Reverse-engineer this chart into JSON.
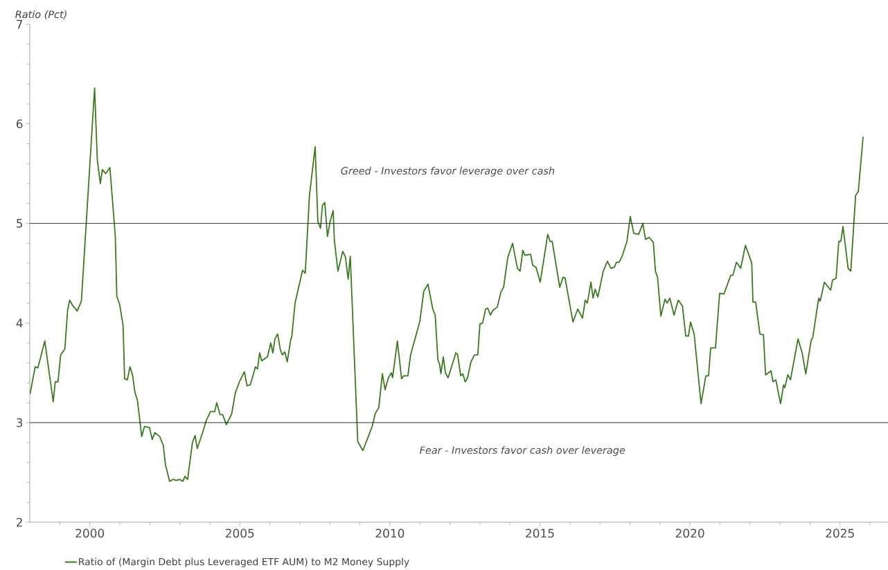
{
  "chart_data": {
    "type": "line",
    "ylabel": "Ratio (Pct)",
    "xlim": [
      1998,
      2026.6
    ],
    "ylim": [
      2,
      7
    ],
    "xticks": [
      {
        "value": 1999,
        "label": null
      },
      2000,
      {
        "value": 2001,
        "label": null
      },
      {
        "value": 2002,
        "label": null
      },
      {
        "value": 2003,
        "label": null
      },
      {
        "value": 2004,
        "label": null
      },
      2005,
      {
        "value": 2006,
        "label": null
      },
      {
        "value": 2007,
        "label": null
      },
      {
        "value": 2008,
        "label": null
      },
      {
        "value": 2009,
        "label": null
      },
      2010,
      {
        "value": 2011,
        "label": null
      },
      {
        "value": 2012,
        "label": null
      },
      {
        "value": 2013,
        "label": null
      },
      {
        "value": 2014,
        "label": null
      },
      2015,
      {
        "value": 2016,
        "label": null
      },
      {
        "value": 2017,
        "label": null
      },
      {
        "value": 2018,
        "label": null
      },
      {
        "value": 2019,
        "label": null
      },
      2020,
      {
        "value": 2021,
        "label": null
      },
      {
        "value": 2022,
        "label": null
      },
      {
        "value": 2023,
        "label": null
      },
      {
        "value": 2024,
        "label": null
      },
      2025,
      {
        "value": 2026,
        "label": null
      }
    ],
    "yticks": [
      2,
      {
        "value": 2.2,
        "label": null
      },
      {
        "value": 2.4,
        "label": null
      },
      {
        "value": 2.6,
        "label": null
      },
      {
        "value": 2.8,
        "label": null
      },
      3,
      {
        "value": 3.2,
        "label": null
      },
      {
        "value": 3.4,
        "label": null
      },
      {
        "value": 3.6,
        "label": null
      },
      {
        "value": 3.8,
        "label": null
      },
      4,
      {
        "value": 4.2,
        "label": null
      },
      {
        "value": 4.4,
        "label": null
      },
      {
        "value": 4.6,
        "label": null
      },
      {
        "value": 4.8,
        "label": null
      },
      5,
      {
        "value": 5.2,
        "label": null
      },
      {
        "value": 5.4,
        "label": null
      },
      {
        "value": 5.6,
        "label": null
      },
      {
        "value": 5.8,
        "label": null
      },
      6,
      {
        "value": 6.2,
        "label": null
      },
      {
        "value": 6.4,
        "label": null
      },
      {
        "value": 6.6,
        "label": null
      },
      {
        "value": 6.8,
        "label": null
      },
      7
    ],
    "legend": "bottom",
    "ref_lines": [
      {
        "axis": "y",
        "value": 5,
        "color": "#000000"
      },
      {
        "axis": "y",
        "value": 3,
        "color": "#000000"
      }
    ],
    "annotations": [
      "Greed - Investors favor leverage over cash",
      "Fear - Investors favor cash over leverage"
    ],
    "series": [
      {
        "name": "Ratio of (Margin Debt plus Leveraged ETF AUM) to M2 Money Supply",
        "color": "#3a7a1e",
        "x": [
          1998.01,
          1998.18,
          1998.27,
          1998.5,
          1998.78,
          1998.85,
          1998.94,
          1999.03,
          1999.17,
          1999.26,
          1999.33,
          1999.42,
          1999.58,
          1999.72,
          1999.93,
          2000.16,
          2000.25,
          2000.35,
          2000.42,
          2000.53,
          2000.67,
          2000.85,
          2000.9,
          2001.0,
          2001.11,
          2001.16,
          2001.25,
          2001.34,
          2001.43,
          2001.5,
          2001.59,
          2001.73,
          2001.82,
          2001.99,
          2002.08,
          2002.17,
          2002.33,
          2002.45,
          2002.52,
          2002.66,
          2002.77,
          2002.89,
          2003.0,
          2003.1,
          2003.17,
          2003.26,
          2003.42,
          2003.51,
          2003.58,
          2003.76,
          2003.88,
          2004.02,
          2004.16,
          2004.23,
          2004.34,
          2004.43,
          2004.55,
          2004.73,
          2004.85,
          2005.0,
          2005.15,
          2005.24,
          2005.35,
          2005.52,
          2005.59,
          2005.66,
          2005.73,
          2005.92,
          2006.03,
          2006.1,
          2006.17,
          2006.26,
          2006.35,
          2006.42,
          2006.5,
          2006.58,
          2006.7,
          2006.73,
          2006.84,
          2006.93,
          2007.09,
          2007.18,
          2007.32,
          2007.51,
          2007.6,
          2007.69,
          2007.75,
          2007.83,
          2007.92,
          2008.01,
          2008.11,
          2008.15,
          2008.27,
          2008.43,
          2008.52,
          2008.61,
          2008.68,
          2008.93,
          2009.1,
          2009.28,
          2009.42,
          2009.51,
          2009.63,
          2009.75,
          2009.84,
          2009.95,
          2010.05,
          2010.09,
          2010.25,
          2010.39,
          2010.46,
          2010.6,
          2010.69,
          2010.92,
          2011.0,
          2011.13,
          2011.27,
          2011.43,
          2011.51,
          2011.6,
          2011.66,
          2011.7,
          2011.78,
          2011.85,
          2011.94,
          2012.2,
          2012.26,
          2012.36,
          2012.43,
          2012.51,
          2012.59,
          2012.7,
          2012.82,
          2012.93,
          2013.0,
          2013.09,
          2013.19,
          2013.26,
          2013.35,
          2013.44,
          2013.58,
          2013.7,
          2013.79,
          2013.93,
          2014.09,
          2014.25,
          2014.34,
          2014.43,
          2014.5,
          2014.69,
          2014.76,
          2014.87,
          2015.01,
          2015.26,
          2015.34,
          2015.41,
          2015.66,
          2015.77,
          2015.84,
          2016.1,
          2016.26,
          2016.42,
          2016.51,
          2016.58,
          2016.7,
          2016.77,
          2016.84,
          2016.93,
          2017.11,
          2017.25,
          2017.37,
          2017.48,
          2017.55,
          2017.64,
          2017.74,
          2017.9,
          2018.01,
          2018.13,
          2018.29,
          2018.43,
          2018.52,
          2018.64,
          2018.78,
          2018.85,
          2018.92,
          2019.03,
          2019.17,
          2019.24,
          2019.33,
          2019.47,
          2019.61,
          2019.75,
          2019.86,
          2019.95,
          2020.02,
          2020.14,
          2020.37,
          2020.53,
          2020.62,
          2020.69,
          2020.85,
          2020.99,
          2021.13,
          2021.36,
          2021.43,
          2021.55,
          2021.69,
          2021.85,
          2022.06,
          2022.1,
          2022.19,
          2022.33,
          2022.45,
          2022.52,
          2022.7,
          2022.77,
          2022.86,
          2023.02,
          2023.12,
          2023.16,
          2023.26,
          2023.35,
          2023.6,
          2023.74,
          2023.86,
          2024.04,
          2024.09,
          2024.29,
          2024.34,
          2024.48,
          2024.69,
          2024.75,
          2024.87,
          2024.96,
          2025.03,
          2025.1,
          2025.27,
          2025.36,
          2025.52,
          2025.61,
          2025.77
        ],
        "values": [
          3.29,
          3.56,
          3.55,
          3.82,
          3.21,
          3.41,
          3.41,
          3.68,
          3.74,
          4.13,
          4.23,
          4.18,
          4.12,
          4.22,
          5.24,
          6.36,
          5.64,
          5.4,
          5.54,
          5.5,
          5.56,
          4.87,
          4.27,
          4.18,
          3.97,
          3.44,
          3.43,
          3.56,
          3.47,
          3.31,
          3.22,
          2.86,
          2.96,
          2.95,
          2.83,
          2.9,
          2.86,
          2.77,
          2.58,
          2.41,
          2.43,
          2.42,
          2.43,
          2.41,
          2.46,
          2.43,
          2.8,
          2.87,
          2.74,
          2.9,
          3.02,
          3.11,
          3.11,
          3.2,
          3.08,
          3.08,
          2.98,
          3.09,
          3.3,
          3.42,
          3.51,
          3.37,
          3.38,
          3.56,
          3.54,
          3.7,
          3.62,
          3.66,
          3.8,
          3.7,
          3.84,
          3.89,
          3.73,
          3.68,
          3.71,
          3.61,
          3.84,
          3.86,
          4.2,
          4.32,
          4.53,
          4.5,
          5.28,
          5.77,
          5.02,
          4.95,
          5.18,
          5.21,
          4.87,
          5.02,
          5.13,
          4.83,
          4.52,
          4.72,
          4.66,
          4.44,
          4.67,
          2.81,
          2.72,
          2.86,
          2.97,
          3.09,
          3.15,
          3.49,
          3.33,
          3.45,
          3.5,
          3.45,
          3.82,
          3.44,
          3.47,
          3.47,
          3.68,
          3.93,
          4.02,
          4.32,
          4.39,
          4.14,
          4.08,
          3.63,
          3.58,
          3.49,
          3.66,
          3.5,
          3.45,
          3.7,
          3.68,
          3.47,
          3.49,
          3.41,
          3.45,
          3.61,
          3.68,
          3.68,
          3.99,
          4.0,
          4.14,
          4.15,
          4.08,
          4.13,
          4.16,
          4.31,
          4.36,
          4.66,
          4.8,
          4.55,
          4.52,
          4.73,
          4.68,
          4.69,
          4.58,
          4.56,
          4.41,
          4.89,
          4.82,
          4.82,
          4.36,
          4.46,
          4.45,
          4.01,
          4.14,
          4.05,
          4.23,
          4.2,
          4.41,
          4.25,
          4.34,
          4.26,
          4.52,
          4.62,
          4.55,
          4.56,
          4.61,
          4.61,
          4.67,
          4.82,
          5.07,
          4.9,
          4.89,
          5.0,
          4.84,
          4.86,
          4.81,
          4.52,
          4.46,
          4.07,
          4.24,
          4.2,
          4.25,
          4.08,
          4.23,
          4.17,
          3.87,
          3.87,
          4.01,
          3.89,
          3.19,
          3.47,
          3.47,
          3.75,
          3.75,
          4.3,
          4.29,
          4.48,
          4.48,
          4.61,
          4.55,
          4.78,
          4.6,
          4.21,
          4.21,
          3.89,
          3.88,
          3.48,
          3.52,
          3.41,
          3.43,
          3.19,
          3.38,
          3.35,
          3.48,
          3.43,
          3.84,
          3.7,
          3.49,
          3.83,
          3.85,
          4.25,
          4.22,
          4.41,
          4.33,
          4.43,
          4.45,
          4.82,
          4.82,
          4.97,
          4.55,
          4.52,
          5.28,
          5.32,
          5.87
        ]
      }
    ]
  }
}
